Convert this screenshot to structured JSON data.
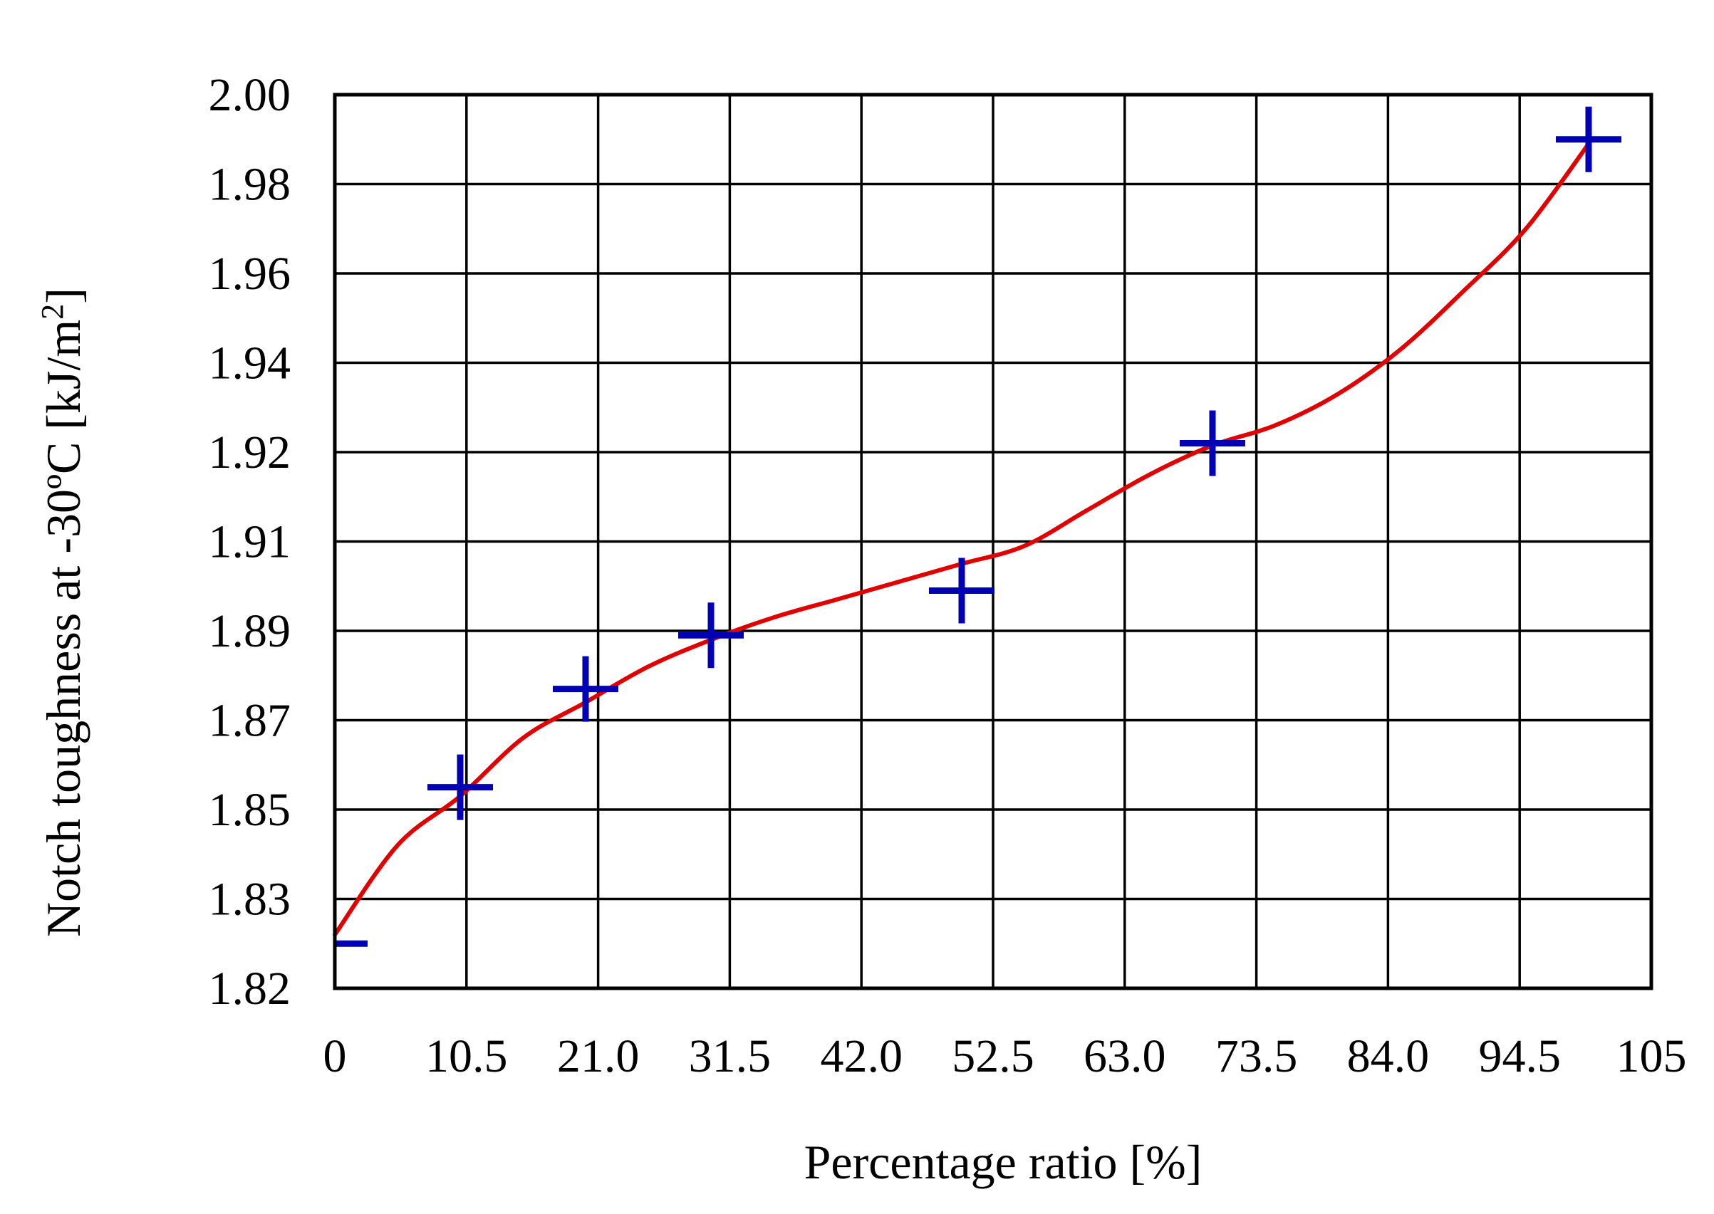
{
  "chart_data": {
    "type": "scatter",
    "title": "",
    "xlabel": "Percentage ratio [%]",
    "ylabel_main": "Notch toughness at -30ºC [kJ/m",
    "ylabel_sup": "2",
    "ylabel_end": "]",
    "x_ticks": [
      "0",
      "10.5",
      "21.0",
      "31.5",
      "42.0",
      "52.5",
      "63.0",
      "73.5",
      "84.0",
      "94.5",
      "105"
    ],
    "y_ticks": [
      "1.82",
      "1.83",
      "1.85",
      "1.87",
      "1.89",
      "1.91",
      "1.92",
      "1.94",
      "1.96",
      "1.98",
      "2.00"
    ],
    "x_range": [
      0,
      105
    ],
    "grid": true,
    "legend": "none",
    "series": [
      {
        "kind": "points",
        "marker": "plus",
        "color": "#0000b4",
        "points": [
          {
            "x": 0,
            "y": 1.825
          },
          {
            "x": 10,
            "y": 1.855
          },
          {
            "x": 20,
            "y": 1.877
          },
          {
            "x": 30,
            "y": 1.889
          },
          {
            "x": 50,
            "y": 1.899
          },
          {
            "x": 70,
            "y": 1.922
          },
          {
            "x": 100,
            "y": 1.99
          }
        ]
      },
      {
        "kind": "fit-curve",
        "color": "#e00000",
        "points": [
          {
            "x": 0,
            "y": 1.826
          },
          {
            "x": 5,
            "y": 1.842
          },
          {
            "x": 10,
            "y": 1.853
          },
          {
            "x": 15,
            "y": 1.866
          },
          {
            "x": 20,
            "y": 1.874
          },
          {
            "x": 25,
            "y": 1.882
          },
          {
            "x": 30,
            "y": 1.888
          },
          {
            "x": 35,
            "y": 1.893
          },
          {
            "x": 40,
            "y": 1.897
          },
          {
            "x": 45,
            "y": 1.901
          },
          {
            "x": 50,
            "y": 1.905
          },
          {
            "x": 55,
            "y": 1.909
          },
          {
            "x": 60,
            "y": 1.9135
          },
          {
            "x": 65,
            "y": 1.9175
          },
          {
            "x": 70,
            "y": 1.9215
          },
          {
            "x": 75,
            "y": 1.926
          },
          {
            "x": 80,
            "y": 1.933
          },
          {
            "x": 85,
            "y": 1.943
          },
          {
            "x": 90,
            "y": 1.956
          },
          {
            "x": 95,
            "y": 1.97
          },
          {
            "x": 100,
            "y": 1.989
          }
        ]
      }
    ]
  }
}
